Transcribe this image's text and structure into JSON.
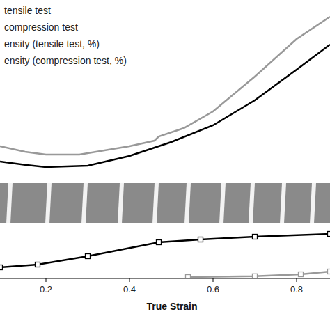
{
  "chart_data": {
    "type": "line",
    "x_label": "True Strain",
    "xlim": [
      0.09,
      0.88
    ],
    "xticks": [
      0.2,
      0.4,
      0.6,
      0.8
    ],
    "ylim": [
      0,
      100
    ],
    "tick_labels": "x",
    "grid": false,
    "legend": "top-left",
    "series": [
      {
        "name": "tensile test",
        "color": "#000000",
        "marker": "none",
        "line_style": "solid",
        "x": [
          0.09,
          0.15,
          0.2,
          0.3,
          0.4,
          0.5,
          0.6,
          0.7,
          0.8,
          0.88
        ],
        "values": [
          42,
          40.8,
          40,
          40.5,
          44,
          49,
          55,
          64,
          75,
          84
        ]
      },
      {
        "name": "compression test",
        "color": "#999999",
        "marker": "none",
        "line_style": "solid",
        "x": [
          0.09,
          0.15,
          0.2,
          0.28,
          0.4,
          0.46,
          0.47,
          0.53,
          0.6,
          0.7,
          0.8,
          0.88
        ],
        "values": [
          47.5,
          45.5,
          44.5,
          44.5,
          47.5,
          49.5,
          51,
          54,
          60,
          72.5,
          86,
          94
        ]
      },
      {
        "name": "ensity (tensile test, %)",
        "color": "#000000",
        "marker": "square",
        "line_style": "solid",
        "x": [
          0.09,
          0.18,
          0.3,
          0.47,
          0.57,
          0.7,
          0.88
        ],
        "values": [
          4,
          5,
          8,
          13,
          14,
          15,
          16
        ]
      },
      {
        "name": "ensity (compression test, %)",
        "color": "#999999",
        "marker": "square",
        "line_style": "solid",
        "x": [
          0.54,
          0.7,
          0.81,
          0.88
        ],
        "values": [
          0.5,
          0.8,
          1.5,
          2.5
        ]
      }
    ]
  }
}
